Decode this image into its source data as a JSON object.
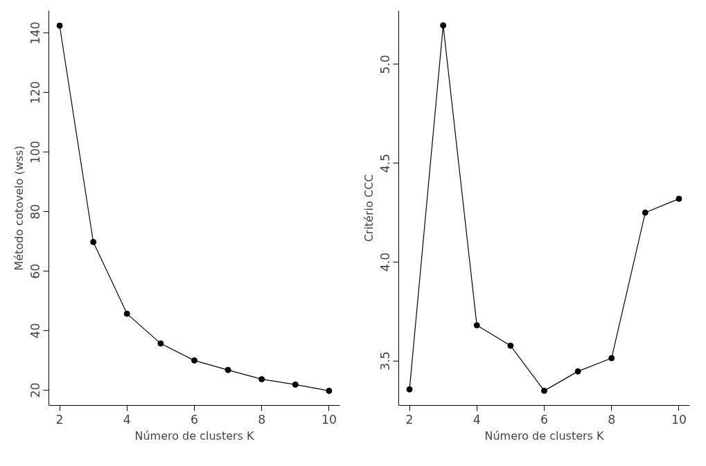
{
  "chart_data": [
    {
      "type": "line",
      "xlabel": "Número de clusters K",
      "ylabel": "Método cotovelo (wss)",
      "x": [
        2,
        3,
        4,
        5,
        6,
        7,
        8,
        9,
        10
      ],
      "series": [
        {
          "color": "#000000",
          "values": [
            142.5,
            69.8,
            45.7,
            35.7,
            30.0,
            26.8,
            23.7,
            21.9,
            19.8
          ]
        }
      ],
      "xlim": [
        1.68,
        10.32
      ],
      "ylim": [
        14.9,
        147.5
      ],
      "xticks": [
        2,
        4,
        6,
        8,
        10
      ],
      "yticks": [
        20,
        40,
        60,
        80,
        100,
        120,
        140
      ],
      "grid": false,
      "marker": "circle",
      "line_style": "solid"
    },
    {
      "type": "line",
      "xlabel": "Número de clusters K",
      "ylabel": "Critério CCC",
      "x": [
        2,
        3,
        4,
        5,
        6,
        7,
        8,
        9,
        10
      ],
      "series": [
        {
          "color": "#000000",
          "values": [
            3.356,
            5.197,
            3.68,
            3.577,
            3.349,
            3.447,
            3.514,
            4.25,
            4.32
          ]
        }
      ],
      "xlim": [
        1.68,
        10.32
      ],
      "ylim": [
        3.275,
        5.271
      ],
      "xticks": [
        2,
        4,
        6,
        8,
        10
      ],
      "yticks": [
        3.5,
        {
          "value": 4,
          "label": "4.0"
        },
        4.5,
        {
          "value": 5,
          "label": "5.0"
        }
      ],
      "grid": false,
      "marker": "circle",
      "line_style": "solid"
    }
  ]
}
